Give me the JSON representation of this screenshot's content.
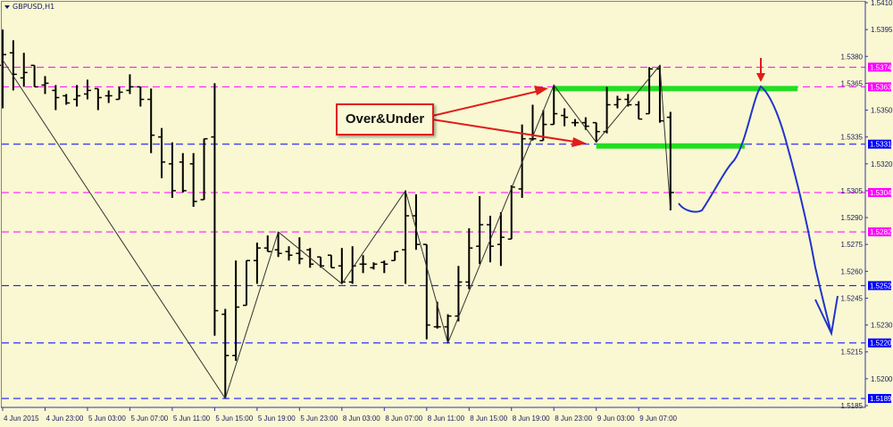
{
  "chart_data": {
    "type": "ohlc",
    "title": "GBPUSD,H1",
    "symbol": "GBPUSD",
    "timeframe": "H1",
    "background_color": "#f9f8d2",
    "bar_color": "#000000",
    "ylim": [
      1.5185,
      1.541
    ],
    "y_ticks": [
      "1.5410",
      "1.5395",
      "1.5380",
      "1.5365",
      "1.5350",
      "1.5335",
      "1.5320",
      "1.5305",
      "1.5290",
      "1.5275",
      "1.5260",
      "1.5245",
      "1.5230",
      "1.5215",
      "1.5200",
      "1.5185"
    ],
    "x_ticks": [
      "4 Jun 2015",
      "4 Jun 23:00",
      "5 Jun 03:00",
      "5 Jun 07:00",
      "5 Jun 11:00",
      "5 Jun 15:00",
      "5 Jun 19:00",
      "5 Jun 23:00",
      "8 Jun 03:00",
      "8 Jun 07:00",
      "8 Jun 11:00",
      "8 Jun 15:00",
      "8 Jun 19:00",
      "8 Jun 23:00",
      "9 Jun 03:00",
      "9 Jun 07:00"
    ],
    "x_tick_every_bars": 4,
    "bars_ohlc": [
      [
        1.5375,
        1.5395,
        1.5351,
        1.5381
      ],
      [
        1.5382,
        1.5389,
        1.5361,
        1.537
      ],
      [
        1.5368,
        1.5382,
        1.5363,
        1.5371
      ],
      [
        1.5375,
        1.5375,
        1.5363,
        1.5363
      ],
      [
        1.5364,
        1.5369,
        1.5359,
        1.5365
      ],
      [
        1.5361,
        1.5364,
        1.535,
        1.5357
      ],
      [
        1.5358,
        1.5359,
        1.5353,
        1.5354
      ],
      [
        1.5356,
        1.5364,
        1.5352,
        1.5358
      ],
      [
        1.5359,
        1.5367,
        1.5356,
        1.5361
      ],
      [
        1.5362,
        1.5362,
        1.535,
        1.5357
      ],
      [
        1.5358,
        1.5361,
        1.5354,
        1.5358
      ],
      [
        1.5356,
        1.5363,
        1.5356,
        1.536
      ],
      [
        1.5361,
        1.537,
        1.5359,
        1.5363
      ],
      [
        1.5363,
        1.5363,
        1.5352,
        1.5356
      ],
      [
        1.5356,
        1.5362,
        1.5326,
        1.5336
      ],
      [
        1.5335,
        1.534,
        1.5312,
        1.5321
      ],
      [
        1.532,
        1.5332,
        1.5301,
        1.5305
      ],
      [
        1.5321,
        1.5326,
        1.5304,
        1.5305
      ],
      [
        1.532,
        1.5326,
        1.5296,
        1.5299
      ],
      [
        1.53,
        1.5334,
        1.53,
        1.5334
      ],
      [
        1.5335,
        1.5365,
        1.5224,
        1.5238
      ],
      [
        1.5236,
        1.5239,
        1.5189,
        1.5213
      ],
      [
        1.5213,
        1.5266,
        1.521,
        1.524
      ],
      [
        1.5241,
        1.5266,
        1.5241,
        1.5266
      ],
      [
        1.5266,
        1.5276,
        1.5253,
        1.5273
      ],
      [
        1.5273,
        1.528,
        1.5271,
        1.5271
      ],
      [
        1.5272,
        1.5282,
        1.5268,
        1.527
      ],
      [
        1.5271,
        1.5274,
        1.5266,
        1.5269
      ],
      [
        1.527,
        1.5279,
        1.5264,
        1.5267
      ],
      [
        1.5272,
        1.5273,
        1.5262,
        1.5264
      ],
      [
        1.5268,
        1.5268,
        1.5262,
        1.5263
      ],
      [
        1.5269,
        1.5269,
        1.5262,
        1.5262
      ],
      [
        1.5263,
        1.5273,
        1.5253,
        1.5254
      ],
      [
        1.5254,
        1.5274,
        1.5253,
        1.5263
      ],
      [
        1.5264,
        1.5269,
        1.5259,
        1.5264
      ],
      [
        1.5262,
        1.5265,
        1.5261,
        1.5264
      ],
      [
        1.5265,
        1.5266,
        1.5259,
        1.5264
      ],
      [
        1.5266,
        1.5271,
        1.5266,
        1.5271
      ],
      [
        1.5272,
        1.5305,
        1.5253,
        1.5291
      ],
      [
        1.5291,
        1.5303,
        1.5272,
        1.5275
      ],
      [
        1.5275,
        1.5275,
        1.5222,
        1.523
      ],
      [
        1.5229,
        1.5243,
        1.5228,
        1.5229
      ],
      [
        1.5229,
        1.5236,
        1.522,
        1.5235
      ],
      [
        1.5235,
        1.5263,
        1.5232,
        1.5254
      ],
      [
        1.5254,
        1.5284,
        1.525,
        1.5273
      ],
      [
        1.5274,
        1.5302,
        1.5264,
        1.5286
      ],
      [
        1.5286,
        1.5291,
        1.5265,
        1.5274
      ],
      [
        1.5275,
        1.5293,
        1.5263,
        1.5279
      ],
      [
        1.5278,
        1.5308,
        1.5278,
        1.5307
      ],
      [
        1.5306,
        1.5342,
        1.5301,
        1.5334
      ],
      [
        1.5334,
        1.5353,
        1.5333,
        1.5334
      ],
      [
        1.5333,
        1.535,
        1.5333,
        1.5342
      ],
      [
        1.5342,
        1.5364,
        1.5342,
        1.5348
      ],
      [
        1.5347,
        1.5351,
        1.5341,
        1.5346
      ],
      [
        1.5343,
        1.5345,
        1.5341,
        1.5343
      ],
      [
        1.5343,
        1.5346,
        1.5339,
        1.5341
      ],
      [
        1.5343,
        1.5343,
        1.5332,
        1.5338
      ],
      [
        1.5338,
        1.5363,
        1.5337,
        1.5353
      ],
      [
        1.5353,
        1.5358,
        1.5351,
        1.5356
      ],
      [
        1.5356,
        1.5359,
        1.5352,
        1.5353
      ],
      [
        1.5353,
        1.5355,
        1.5345,
        1.5345
      ],
      [
        1.5348,
        1.5374,
        1.5348,
        1.5373
      ],
      [
        1.5373,
        1.5375,
        1.5343,
        1.5344
      ],
      [
        1.5346,
        1.5349,
        1.5294,
        1.5304
      ]
    ],
    "zigzag": [
      [
        1,
        1.5378
      ],
      [
        22,
        1.5189
      ],
      [
        27,
        1.5282
      ],
      [
        33,
        1.5253
      ],
      [
        39,
        1.5305
      ],
      [
        43,
        1.522
      ],
      [
        53,
        1.5364
      ],
      [
        57,
        1.5332
      ],
      [
        63,
        1.5375
      ],
      [
        64,
        1.5294
      ]
    ],
    "zigzag_color": "#333333",
    "levels": [
      {
        "price": 1.5374,
        "label": "1.5374",
        "color": "#ff00ff"
      },
      {
        "price": 1.5363,
        "label": "1.5363",
        "color": "#ff00ff"
      },
      {
        "price": 1.5331,
        "label": "1.5331",
        "color": "#0000ff"
      },
      {
        "price": 1.5304,
        "label": "1.5304",
        "color": "#ff00ff"
      },
      {
        "price": 1.5282,
        "label": "1.5282",
        "color": "#ff00ff"
      },
      {
        "price": 1.5252,
        "label": "1.5252",
        "color": "#0000ff"
      },
      {
        "price": 1.522,
        "label": "1.5220",
        "color": "#0000ff"
      },
      {
        "price": 1.5189,
        "label": "1.5189",
        "color": "#0000ff"
      }
    ],
    "zones": [
      {
        "price": 1.5362,
        "from_bar": 53,
        "to_bar": 76,
        "color": "#22dd22"
      },
      {
        "price": 1.533,
        "from_bar": 57,
        "to_bar": 71,
        "color": "#22dd22"
      }
    ],
    "annotation": {
      "text": "Over&Under",
      "color": "#e21b1b"
    },
    "forecast_color": "#2233cc"
  }
}
